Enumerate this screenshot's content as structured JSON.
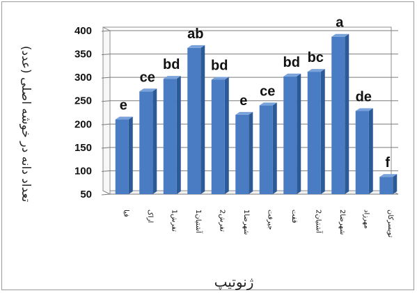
{
  "chart_data": {
    "type": "bar",
    "title": "",
    "xlabel": "ژنوتیپ",
    "ylabel": "تعداد دانه در خوشه اصلی (عدد)",
    "ylim": [
      50,
      400
    ],
    "yticks": [
      50,
      100,
      150,
      200,
      250,
      300,
      350,
      400
    ],
    "grid": true,
    "legend": "none",
    "bar_color": "#4a7cc4",
    "categories": [
      "فیا",
      "اراک",
      "1تفرش",
      "1آشتیان",
      "2تفرش",
      "1شهرضا",
      "جیرفت",
      "قفت",
      "2آشتیان",
      "2شهرضا",
      "مهرزاد",
      "تویسرکان"
    ],
    "values": [
      210,
      270,
      297,
      363,
      295,
      220,
      240,
      302,
      312,
      387,
      228,
      87
    ],
    "letters": [
      "e",
      "ce",
      "bd",
      "ab",
      "bd",
      "e",
      "ce",
      "bd",
      "bc",
      "a",
      "de",
      "f"
    ]
  }
}
